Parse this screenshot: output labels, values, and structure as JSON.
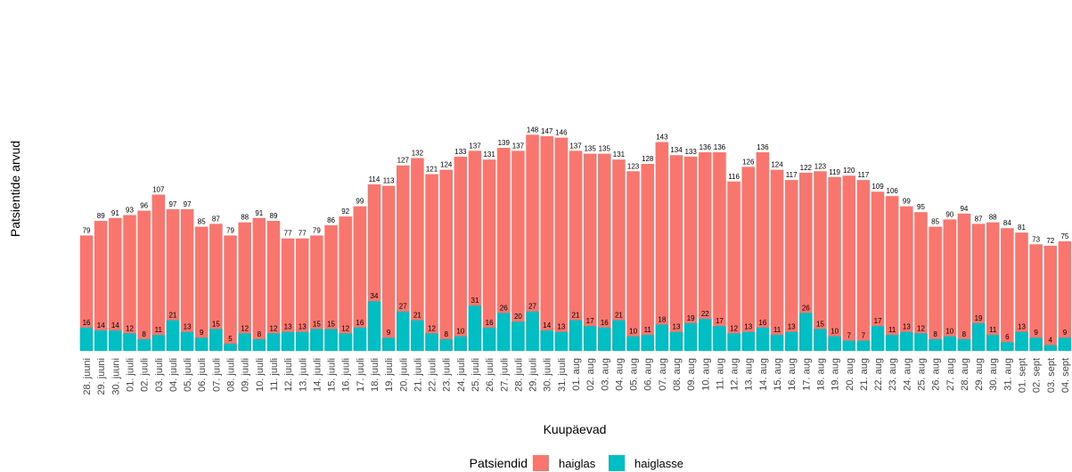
{
  "chart_data": {
    "type": "bar",
    "stacked": false,
    "xlabel": "Kuupäevad",
    "ylabel": "Patsientide arvud",
    "categories": [
      "28. juuni",
      "29. juuni",
      "30. juuni",
      "01. juuli",
      "02. juuli",
      "03. juuli",
      "04. juuli",
      "05. juuli",
      "06. juuli",
      "07. juuli",
      "08. juuli",
      "09. juuli",
      "10. juuli",
      "11. juuli",
      "12. juuli",
      "13. juuli",
      "14. juuli",
      "15. juuli",
      "16. juuli",
      "17. juuli",
      "18. juuli",
      "19. juuli",
      "20. juuli",
      "21. juuli",
      "22. juuli",
      "23. juuli",
      "24. juuli",
      "25. juuli",
      "26. juuli",
      "27. juuli",
      "28. juuli",
      "29. juuli",
      "30. juuli",
      "31. juuli",
      "01. aug",
      "02. aug",
      "03. aug",
      "04. aug",
      "05. aug",
      "06. aug",
      "07. aug",
      "08. aug",
      "09. aug",
      "10. aug",
      "11. aug",
      "12. aug",
      "13. aug",
      "14. aug",
      "15. aug",
      "16. aug",
      "17. aug",
      "18. aug",
      "19. aug",
      "20. aug",
      "21. aug",
      "22. aug",
      "23. aug",
      "24. aug",
      "25. aug",
      "26. aug",
      "27. aug",
      "28. aug",
      "29. aug",
      "30. aug",
      "31. aug",
      "01. sept",
      "02. sept",
      "03. sept",
      "04. sept"
    ],
    "series": [
      {
        "name": "haiglas",
        "color": "#F8766D",
        "values": [
          79,
          89,
          91,
          93,
          96,
          107,
          97,
          97,
          85,
          87,
          79,
          88,
          91,
          89,
          77,
          77,
          79,
          86,
          92,
          99,
          114,
          113,
          127,
          132,
          121,
          124,
          133,
          137,
          131,
          139,
          137,
          148,
          147,
          146,
          137,
          135,
          135,
          131,
          123,
          128,
          143,
          134,
          133,
          136,
          136,
          116,
          126,
          136,
          124,
          117,
          122,
          123,
          119,
          120,
          117,
          109,
          106,
          99,
          95,
          85,
          90,
          94,
          87,
          88,
          84,
          81,
          73,
          72,
          75
        ]
      },
      {
        "name": "haiglasse",
        "color": "#00BFC4",
        "values": [
          16,
          14,
          14,
          12,
          8,
          11,
          21,
          13,
          9,
          15,
          5,
          12,
          8,
          12,
          13,
          13,
          15,
          15,
          12,
          16,
          34,
          9,
          27,
          21,
          12,
          8,
          10,
          31,
          16,
          26,
          20,
          27,
          14,
          13,
          21,
          17,
          16,
          21,
          10,
          11,
          18,
          13,
          19,
          22,
          17,
          12,
          13,
          16,
          11,
          13,
          26,
          15,
          10,
          7,
          7,
          17,
          11,
          13,
          12,
          8,
          10,
          8,
          19,
          11,
          6,
          13,
          9,
          4,
          9
        ]
      }
    ],
    "grid": false,
    "legend_position": "bottom",
    "legend_title": "Patsiendid"
  }
}
